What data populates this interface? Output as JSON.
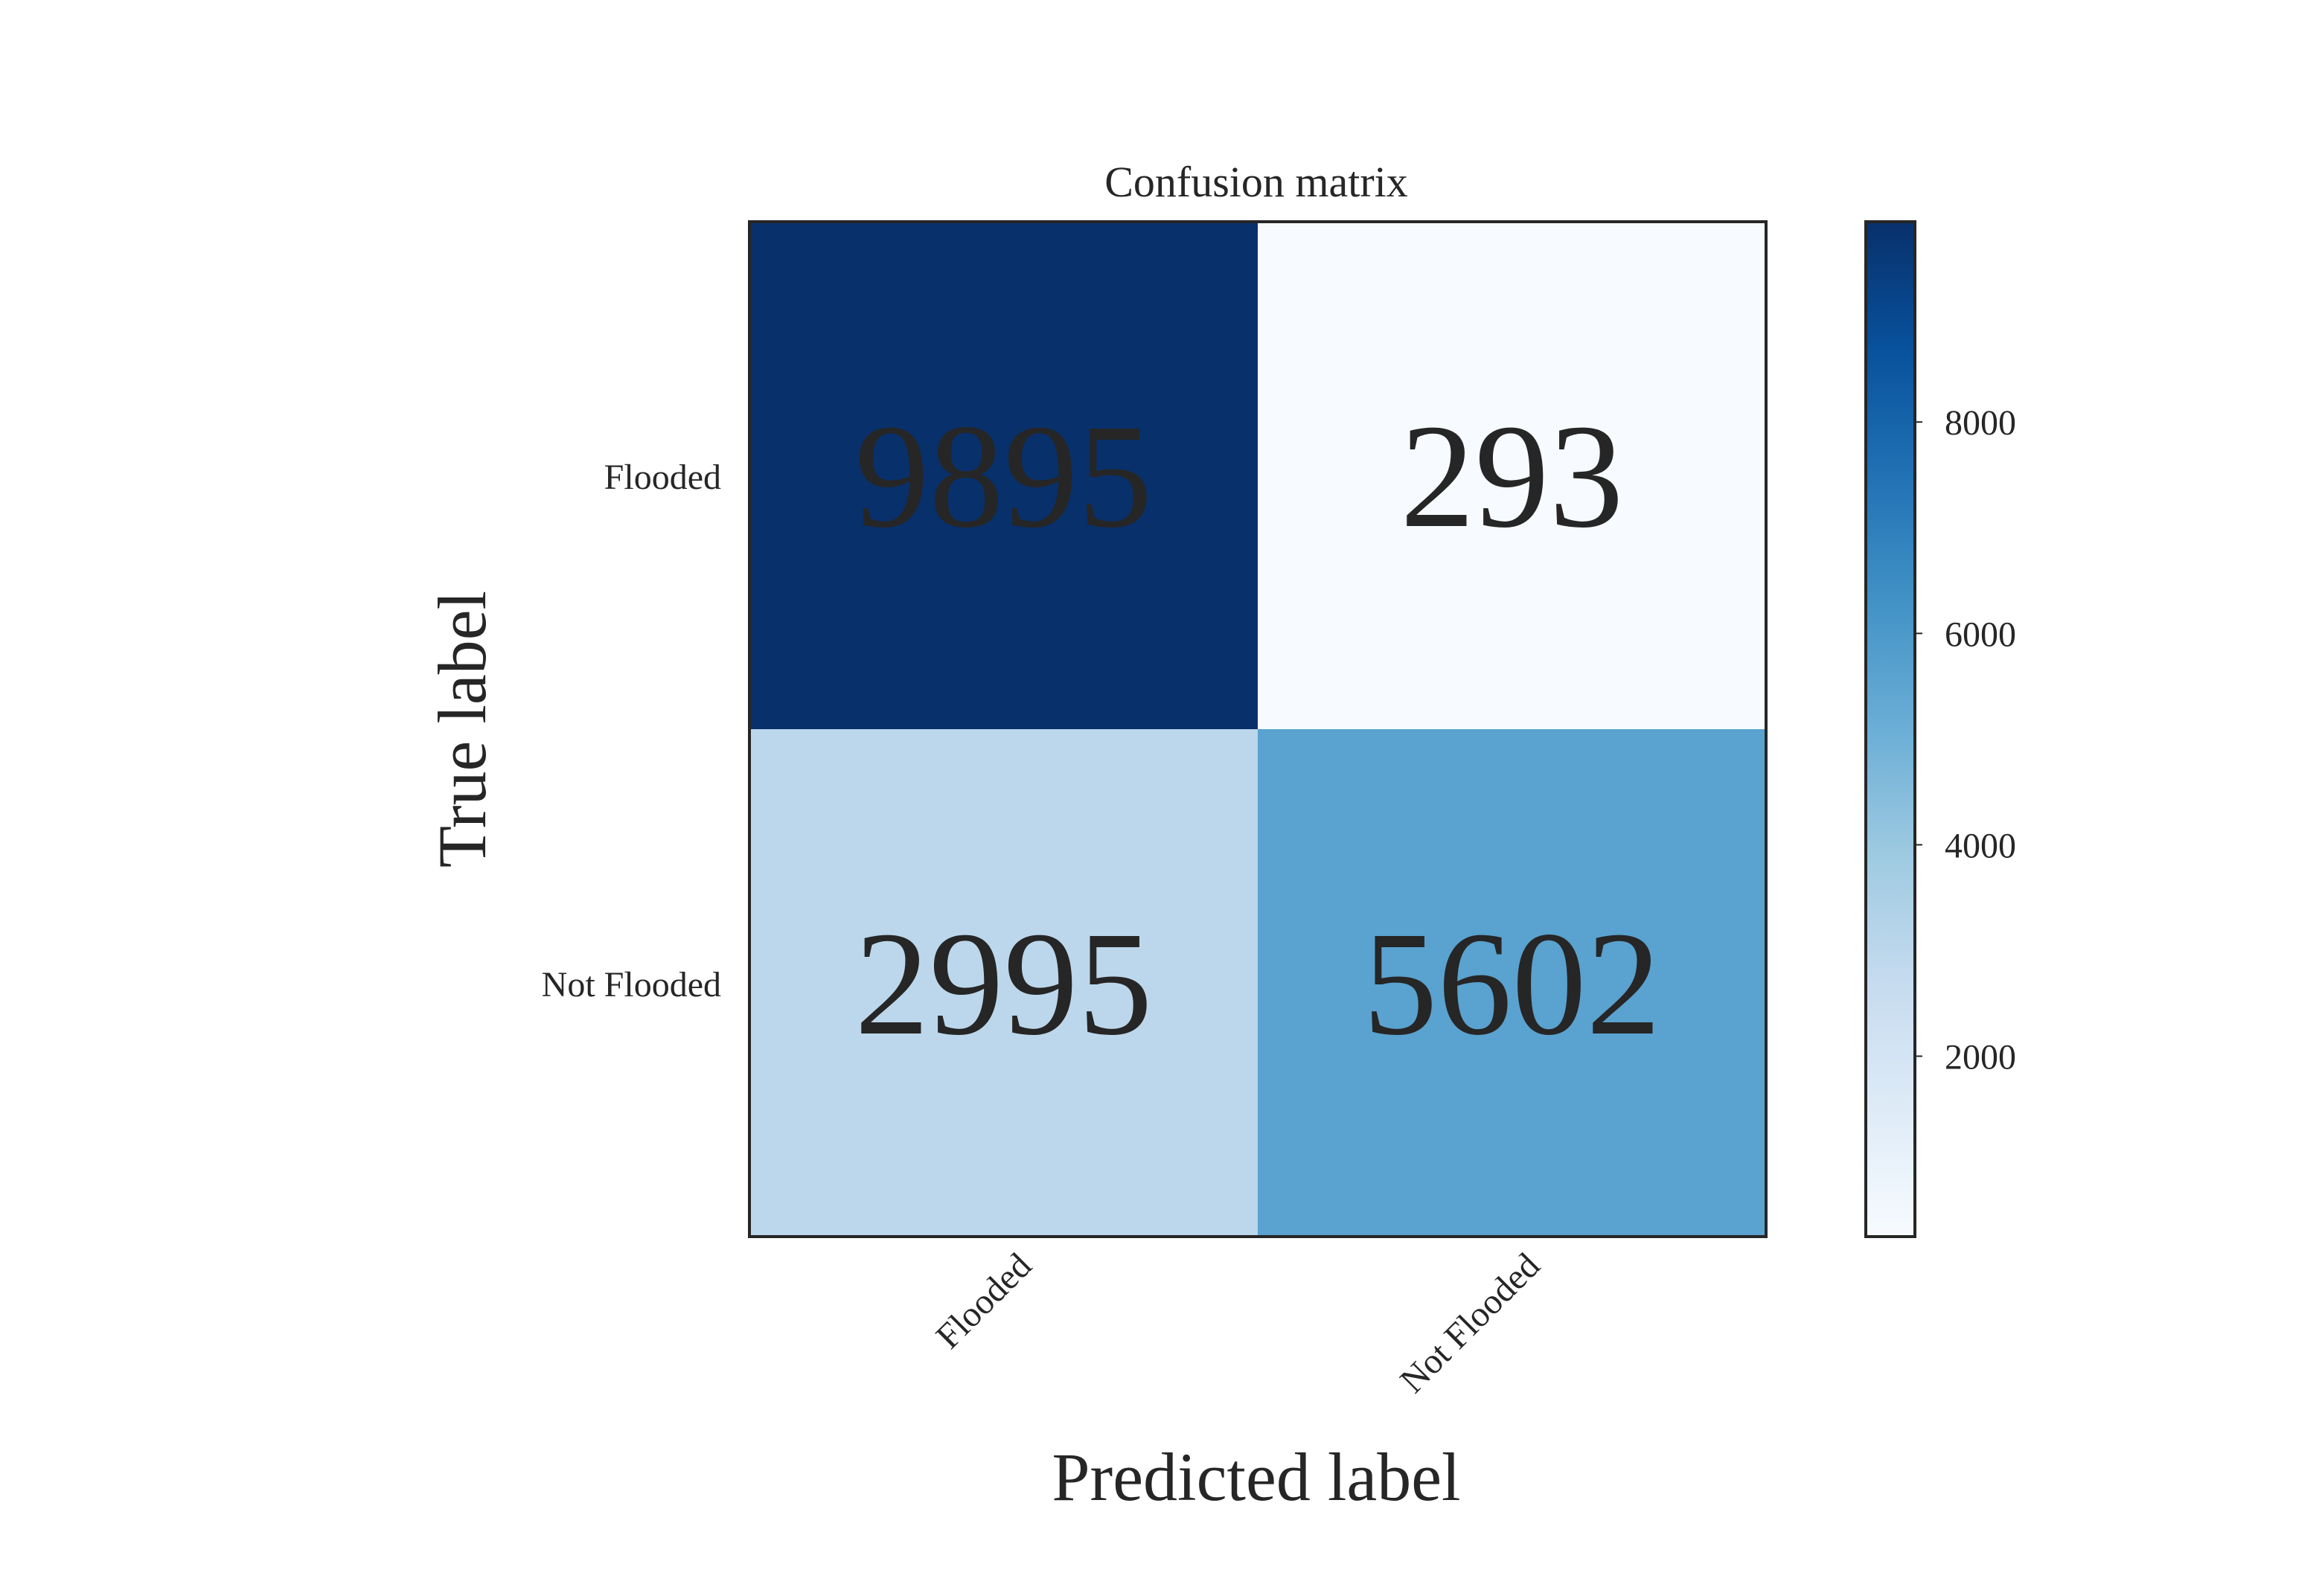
{
  "chart_data": {
    "type": "heatmap",
    "title": "Confusion matrix",
    "xlabel": "Predicted label",
    "ylabel": "True label",
    "x_categories": [
      "Flooded",
      "Not Flooded"
    ],
    "y_categories": [
      "Flooded",
      "Not Flooded"
    ],
    "values": [
      [
        9895,
        293
      ],
      [
        2995,
        5602
      ]
    ],
    "cell_labels": [
      [
        "9895",
        "293"
      ],
      [
        "2995",
        "5602"
      ]
    ],
    "colormap": "Blues",
    "colorbar": {
      "min": 293,
      "max": 9895,
      "ticks": [
        2000,
        4000,
        6000,
        8000
      ],
      "tick_labels": [
        "2000",
        "4000",
        "6000",
        "8000"
      ]
    },
    "colors": {
      "cell_0_0": "#08306b",
      "cell_0_1": "#f7fbff",
      "cell_1_0": "#bcd7eb",
      "cell_1_1": "#5aa2cf",
      "text": "#262626",
      "frame": "#262626"
    },
    "x_tick_rotation_deg": 45,
    "grid": false
  }
}
